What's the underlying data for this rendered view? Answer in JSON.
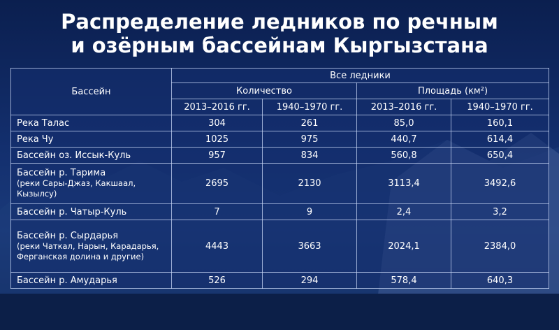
{
  "title": [
    "Распределение ледников по речным",
    "и озёрным бассейнам Кыргызстана"
  ],
  "table": {
    "header": {
      "basin": "Бассейн",
      "all": "Все ледники",
      "count": "Количество",
      "area": "Площадь (км²)",
      "periods": [
        "2013–2016 гг.",
        "1940–1970 гг.",
        "2013–2016 гг.",
        "1940–1970 гг."
      ]
    },
    "rows": [
      {
        "name": "Река Талас",
        "cells": [
          "304",
          "261",
          "85,0",
          "160,1"
        ]
      },
      {
        "name": "Река Чу",
        "cells": [
          "1025",
          "975",
          "440,7",
          "614,4"
        ]
      },
      {
        "name": "Бассейн оз. Иссык-Куль",
        "cells": [
          "957",
          "834",
          "560,8",
          "650,4"
        ]
      },
      {
        "name": "Бассейн р. Тарима",
        "note": "(реки Сары-Джаз, Какшаал, Кызылсу)",
        "cells": [
          "2695",
          "2130",
          "3113,4",
          "3492,6"
        ]
      },
      {
        "name": "Бассейн р. Чатыр-Куль",
        "cells": [
          "7",
          "9",
          "2,4",
          "3,2"
        ]
      },
      {
        "name": "Бассейн р. Сырдарья",
        "note": "(реки Чаткал, Нарын, Карадарья, Ферганская долина и другие)",
        "cells": [
          "4443",
          "3663",
          "2024,1",
          "2384,0"
        ]
      },
      {
        "name": "Бассейн р. Амударья",
        "cells": [
          "526",
          "294",
          "578,4",
          "640,3"
        ]
      }
    ]
  }
}
